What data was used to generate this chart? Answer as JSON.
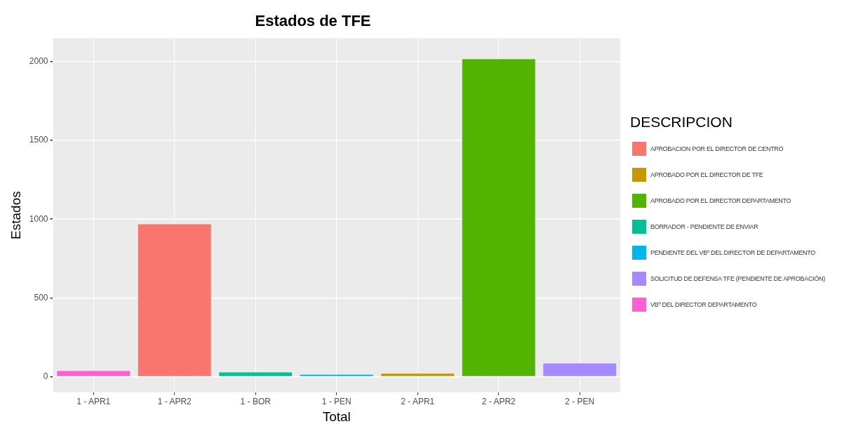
{
  "chart_data": {
    "type": "bar",
    "title": "Estados de TFE",
    "xlabel": "Total",
    "ylabel": "Estados",
    "legend_title": "DESCRIPCION",
    "categories": [
      "1 - APR1",
      "1 - APR2",
      "1 - BOR",
      "1 - PEN",
      "2 - APR1",
      "2 - APR2",
      "2 - PEN"
    ],
    "series": [
      {
        "name": "APROBACION POR EL DIRECTOR DE CENTRO",
        "color": "#f8766d",
        "values": [
          null,
          967,
          null,
          null,
          null,
          null,
          null
        ]
      },
      {
        "name": "APROBADO POR EL DIRECTOR DE TFE",
        "color": "#c49a00",
        "values": [
          null,
          null,
          null,
          null,
          18,
          null,
          null
        ]
      },
      {
        "name": "APROBADO POR EL DIRECTOR DEPARTAMENTO",
        "color": "#53b400",
        "values": [
          null,
          null,
          null,
          null,
          null,
          2017,
          null
        ]
      },
      {
        "name": "BORRADOR - PENDIENTE DE ENVIAR",
        "color": "#00c094",
        "values": [
          null,
          null,
          26,
          null,
          null,
          null,
          null
        ]
      },
      {
        "name": "PENDIENTE DEL VBº DEL DIRECTOR DE DEPARTAMENTO",
        "color": "#00b6eb",
        "values": [
          null,
          null,
          null,
          12,
          null,
          null,
          null
        ]
      },
      {
        "name": "SOLICITUD DE DEFENSA TFE (PENDIENTE DE APROBACIÓN)",
        "color": "#a58aff",
        "values": [
          null,
          null,
          null,
          null,
          null,
          null,
          83
        ]
      },
      {
        "name": "VBº DEL DIRECTOR DEPARTAMENTO",
        "color": "#fb61d7",
        "values": [
          35,
          null,
          null,
          null,
          null,
          null,
          null
        ]
      }
    ],
    "ylim": [
      -100,
      2150
    ],
    "yticks": [
      0,
      500,
      1000,
      1500,
      2000
    ],
    "grid": true,
    "legend": "right"
  }
}
